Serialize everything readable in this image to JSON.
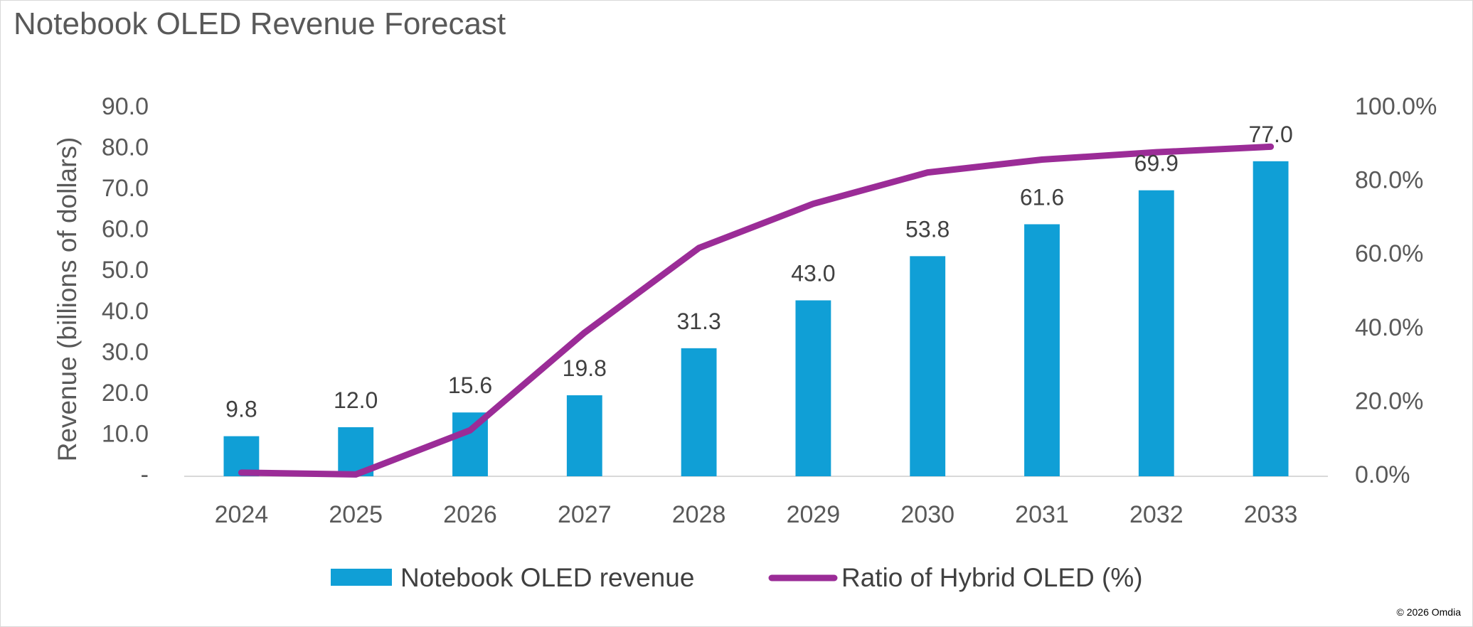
{
  "chart_data": {
    "type": "bar",
    "title": "Notebook OLED Revenue Forecast",
    "categories": [
      "2024",
      "2025",
      "2026",
      "2027",
      "2028",
      "2029",
      "2030",
      "2031",
      "2032",
      "2033"
    ],
    "series": [
      {
        "name": "Notebook OLED revenue",
        "type": "bar",
        "axis": "left",
        "color": "#109FD6",
        "values": [
          9.8,
          12.0,
          15.6,
          19.8,
          31.3,
          43.0,
          53.8,
          61.6,
          69.9,
          77.0
        ],
        "labels": [
          "9.8",
          "12.0",
          "15.6",
          "19.8",
          "31.3",
          "43.0",
          "53.8",
          "61.6",
          "69.9",
          "77.0"
        ]
      },
      {
        "name": "Ratio of Hybrid OLED (%)",
        "type": "line",
        "axis": "right",
        "color": "#9B2C97",
        "values": [
          1.0,
          0.5,
          12.5,
          39.0,
          62.0,
          74.0,
          82.5,
          86.0,
          88.0,
          89.5
        ]
      }
    ],
    "ylabel": "Revenue (billions of dollars)",
    "ylim": [
      0,
      90
    ],
    "yticks": [
      "-",
      "10.0",
      "20.0",
      "30.0",
      "40.0",
      "50.0",
      "60.0",
      "70.0",
      "80.0",
      "90.0"
    ],
    "y2lim": [
      0,
      100
    ],
    "y2ticks": [
      "0.0%",
      "20.0%",
      "40.0%",
      "60.0%",
      "80.0%",
      "100.0%"
    ],
    "legend": "bottom",
    "grid": false
  },
  "copyright": "© 2026 Omdia"
}
